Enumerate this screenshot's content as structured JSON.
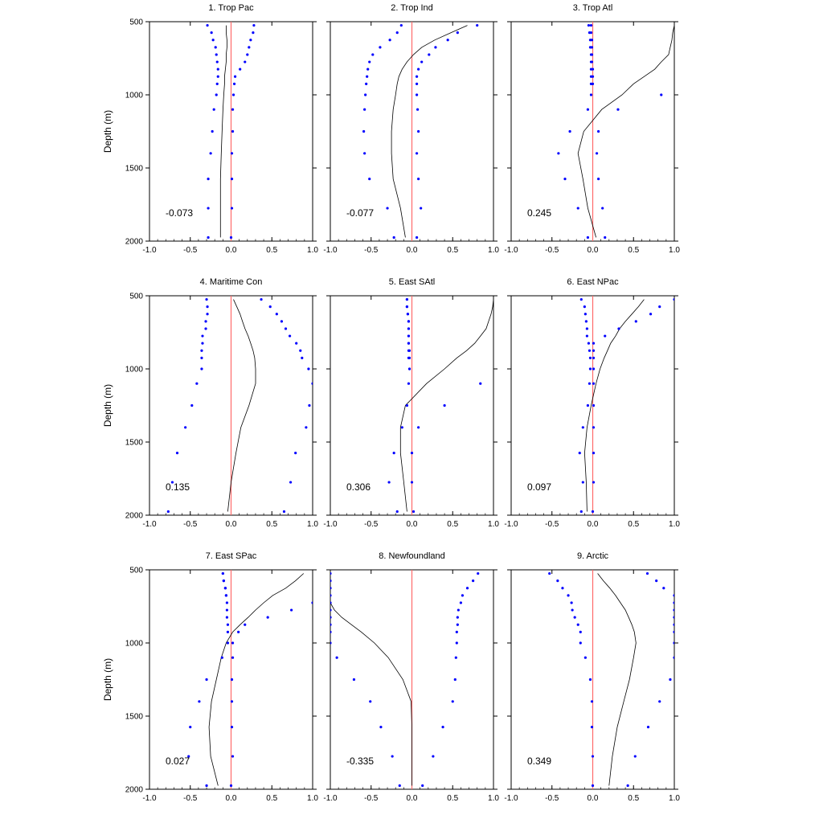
{
  "figure": {
    "ylabel": "Depth (m)"
  },
  "chart_data": [
    {
      "title": "1. Trop Pac",
      "value_label": "-0.073",
      "xlim": [
        -1.0,
        1.0
      ],
      "ylim": [
        500,
        2000
      ],
      "depths": [
        525,
        575,
        625,
        675,
        725,
        775,
        825,
        875,
        925,
        1000,
        1100,
        1250,
        1400,
        1575,
        1775,
        1975
      ],
      "center_line": [
        -0.06,
        -0.06,
        -0.05,
        -0.05,
        -0.06,
        -0.06,
        -0.07,
        -0.08,
        -0.08,
        -0.09,
        -0.1,
        -0.11,
        -0.12,
        -0.13,
        -0.13,
        -0.13
      ],
      "lower_dots": [
        -0.29,
        -0.24,
        -0.22,
        -0.19,
        -0.18,
        -0.17,
        -0.16,
        -0.16,
        -0.17,
        -0.18,
        -0.21,
        -0.23,
        -0.25,
        -0.28,
        -0.28,
        -0.28
      ],
      "upper_dots": [
        0.28,
        0.27,
        0.24,
        0.22,
        0.2,
        0.17,
        0.11,
        0.05,
        0.04,
        0.03,
        0.02,
        0.02,
        0.01,
        0.01,
        0.01,
        0.0
      ],
      "reference_x": 0.0
    },
    {
      "title": "2. Trop Ind",
      "value_label": "-0.077",
      "xlim": [
        -1.0,
        1.0
      ],
      "ylim": [
        500,
        2000
      ],
      "depths": [
        525,
        575,
        625,
        675,
        725,
        775,
        825,
        875,
        925,
        1000,
        1100,
        1250,
        1400,
        1575,
        1775,
        1975
      ],
      "center_line": [
        0.68,
        0.48,
        0.28,
        0.12,
        0.02,
        -0.06,
        -0.12,
        -0.16,
        -0.18,
        -0.2,
        -0.23,
        -0.25,
        -0.25,
        -0.23,
        -0.14,
        -0.08
      ],
      "lower_dots": [
        -0.13,
        -0.18,
        -0.27,
        -0.39,
        -0.48,
        -0.52,
        -0.54,
        -0.55,
        -0.56,
        -0.57,
        -0.58,
        -0.59,
        -0.58,
        -0.52,
        -0.3,
        -0.22
      ],
      "upper_dots": [
        0.8,
        0.56,
        0.44,
        0.29,
        0.21,
        0.12,
        0.08,
        0.06,
        0.06,
        0.06,
        0.07,
        0.08,
        0.06,
        0.08,
        0.11,
        0.06
      ],
      "reference_x": 0.0
    },
    {
      "title": "3. Trop Atl",
      "value_label": "0.245",
      "xlim": [
        -1.0,
        1.0
      ],
      "ylim": [
        500,
        2000
      ],
      "depths": [
        525,
        575,
        625,
        675,
        725,
        775,
        825,
        875,
        925,
        1000,
        1100,
        1250,
        1400,
        1575,
        1775,
        1975
      ],
      "center_line": [
        1.0,
        0.98,
        0.97,
        0.95,
        0.93,
        0.84,
        0.76,
        0.63,
        0.5,
        0.36,
        0.11,
        -0.11,
        -0.18,
        -0.12,
        -0.06,
        0.04
      ],
      "lower_dots": [
        -0.05,
        -0.04,
        -0.03,
        -0.03,
        -0.02,
        -0.02,
        -0.02,
        -0.02,
        -0.02,
        -0.02,
        -0.06,
        -0.28,
        -0.42,
        -0.34,
        -0.18,
        -0.06
      ],
      "upper_dots": [
        -0.02,
        -0.02,
        -0.01,
        -0.01,
        -0.01,
        -0.01,
        0.0,
        0.0,
        0.0,
        0.84,
        0.31,
        0.07,
        0.05,
        0.07,
        0.12,
        0.15
      ],
      "reference_x": 0.0
    },
    {
      "title": "4. Maritime Con",
      "value_label": "0.135",
      "xlim": [
        -1.0,
        1.0
      ],
      "ylim": [
        500,
        2000
      ],
      "depths": [
        525,
        575,
        625,
        675,
        725,
        775,
        825,
        875,
        925,
        1000,
        1100,
        1250,
        1400,
        1575,
        1775,
        1975
      ],
      "center_line": [
        0.03,
        0.07,
        0.11,
        0.14,
        0.17,
        0.21,
        0.24,
        0.27,
        0.29,
        0.3,
        0.3,
        0.22,
        0.12,
        0.06,
        0.0,
        -0.04
      ],
      "lower_dots": [
        -0.3,
        -0.29,
        -0.29,
        -0.31,
        -0.31,
        -0.35,
        -0.35,
        -0.36,
        -0.36,
        -0.36,
        -0.42,
        -0.48,
        -0.56,
        -0.66,
        -0.72,
        -0.77
      ],
      "upper_dots": [
        0.37,
        0.48,
        0.56,
        0.62,
        0.67,
        0.72,
        0.8,
        0.85,
        0.87,
        0.95,
        1.0,
        0.96,
        0.92,
        0.79,
        0.73,
        0.65
      ],
      "reference_x": 0.0
    },
    {
      "title": "5. East SAtl",
      "value_label": "0.306",
      "xlim": [
        -1.0,
        1.0
      ],
      "ylim": [
        500,
        2000
      ],
      "depths": [
        525,
        575,
        625,
        675,
        725,
        775,
        825,
        875,
        925,
        1000,
        1100,
        1250,
        1400,
        1575,
        1775,
        1975
      ],
      "center_line": [
        1.0,
        0.99,
        0.97,
        0.94,
        0.91,
        0.84,
        0.77,
        0.67,
        0.55,
        0.4,
        0.18,
        -0.08,
        -0.14,
        -0.14,
        -0.1,
        -0.06
      ],
      "lower_dots": [
        -0.06,
        -0.06,
        -0.05,
        -0.04,
        -0.04,
        -0.04,
        -0.04,
        -0.03,
        -0.03,
        -0.03,
        -0.04,
        -0.06,
        -0.12,
        -0.22,
        -0.28,
        -0.18
      ],
      "upper_dots": [
        -0.06,
        -0.06,
        -0.05,
        -0.04,
        -0.04,
        -0.04,
        -0.04,
        -0.04,
        -0.04,
        -0.03,
        0.84,
        0.4,
        0.08,
        0.0,
        0.0,
        0.02
      ],
      "reference_x": 0.0
    },
    {
      "title": "6. East NPac",
      "value_label": "0.097",
      "xlim": [
        -1.0,
        1.0
      ],
      "ylim": [
        500,
        2000
      ],
      "depths": [
        525,
        575,
        625,
        675,
        725,
        775,
        825,
        875,
        925,
        1000,
        1100,
        1250,
        1400,
        1575,
        1775,
        1975
      ],
      "center_line": [
        0.63,
        0.56,
        0.48,
        0.4,
        0.33,
        0.28,
        0.22,
        0.18,
        0.14,
        0.09,
        0.04,
        -0.02,
        -0.07,
        -0.1,
        -0.08,
        -0.07
      ],
      "lower_dots": [
        -0.14,
        -0.1,
        -0.09,
        -0.08,
        -0.07,
        -0.07,
        -0.05,
        -0.04,
        -0.03,
        -0.03,
        -0.04,
        -0.06,
        -0.12,
        -0.16,
        -0.12,
        -0.14
      ],
      "upper_dots": [
        1.0,
        0.82,
        0.71,
        0.53,
        0.32,
        0.15,
        0.01,
        0.01,
        0.01,
        0.01,
        0.01,
        0.01,
        0.01,
        0.01,
        0.01,
        0.0
      ],
      "reference_x": 0.0
    },
    {
      "title": "7. East SPac",
      "value_label": "0.027",
      "xlim": [
        -1.0,
        1.0
      ],
      "ylim": [
        500,
        2000
      ],
      "depths": [
        525,
        575,
        625,
        675,
        725,
        775,
        825,
        875,
        925,
        1000,
        1100,
        1250,
        1400,
        1575,
        1775,
        1975
      ],
      "center_line": [
        0.89,
        0.79,
        0.67,
        0.51,
        0.4,
        0.3,
        0.21,
        0.11,
        0.02,
        -0.06,
        -0.12,
        -0.18,
        -0.24,
        -0.27,
        -0.25,
        -0.16
      ],
      "lower_dots": [
        -0.1,
        -0.09,
        -0.07,
        -0.06,
        -0.05,
        -0.05,
        -0.05,
        -0.04,
        -0.04,
        -0.04,
        -0.11,
        -0.3,
        -0.39,
        -0.5,
        -0.52,
        -0.3
      ],
      "upper_dots": [
        -0.1,
        -0.09,
        -0.07,
        -0.06,
        1.0,
        0.74,
        0.45,
        0.17,
        0.09,
        0.02,
        0.02,
        0.01,
        0.01,
        0.01,
        0.02,
        0.0
      ],
      "reference_x": 0.0
    },
    {
      "title": "8. Newfoundland",
      "value_label": "-0.335",
      "xlim": [
        -1.0,
        1.0
      ],
      "ylim": [
        500,
        2000
      ],
      "depths": [
        525,
        575,
        625,
        675,
        725,
        775,
        825,
        875,
        925,
        1000,
        1100,
        1250,
        1400,
        1575,
        1775,
        1975
      ],
      "center_line": [
        -1.0,
        -1.0,
        -1.0,
        -1.0,
        -1.0,
        -0.95,
        -0.86,
        -0.74,
        -0.62,
        -0.46,
        -0.29,
        -0.11,
        -0.01,
        0.0,
        0.0,
        0.0
      ],
      "lower_dots": [
        -1.0,
        -1.0,
        -1.0,
        -1.0,
        -1.0,
        -1.0,
        -1.0,
        -1.0,
        -1.0,
        -1.0,
        -0.92,
        -0.71,
        -0.51,
        -0.38,
        -0.24,
        -0.15
      ],
      "upper_dots": [
        0.81,
        0.75,
        0.68,
        0.62,
        0.6,
        0.57,
        0.56,
        0.56,
        0.55,
        0.55,
        0.54,
        0.53,
        0.5,
        0.38,
        0.26,
        0.13
      ],
      "reference_x": 0.0
    },
    {
      "title": "9. Arctic",
      "value_label": "0.349",
      "xlim": [
        -1.0,
        1.0
      ],
      "ylim": [
        500,
        2000
      ],
      "depths": [
        525,
        575,
        625,
        675,
        725,
        775,
        825,
        875,
        925,
        1000,
        1100,
        1250,
        1400,
        1575,
        1775,
        1975
      ],
      "center_line": [
        0.06,
        0.13,
        0.21,
        0.28,
        0.34,
        0.4,
        0.44,
        0.48,
        0.51,
        0.53,
        0.5,
        0.45,
        0.38,
        0.3,
        0.24,
        0.2
      ],
      "lower_dots": [
        -0.53,
        -0.43,
        -0.37,
        -0.3,
        -0.26,
        -0.25,
        -0.22,
        -0.18,
        -0.15,
        -0.15,
        -0.09,
        -0.03,
        -0.01,
        -0.01,
        0.0,
        0.0
      ],
      "upper_dots": [
        0.67,
        0.78,
        0.87,
        1.0,
        1.0,
        1.0,
        1.0,
        1.0,
        1.0,
        1.0,
        1.0,
        0.95,
        0.82,
        0.68,
        0.52,
        0.43
      ],
      "reference_x": 0.0
    }
  ]
}
